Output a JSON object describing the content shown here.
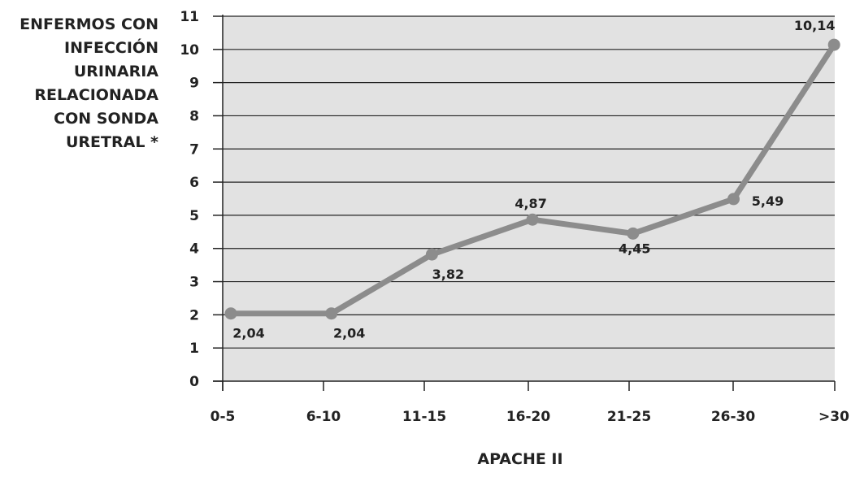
{
  "chart_data": {
    "type": "line",
    "title": "",
    "ylabel": "ENFERMOS CON\nINFECCIÓN\nURINARIA\nRELACIONADA\nCON SONDA\nURETRAL *",
    "xlabel": "APACHE II",
    "categories": [
      "0-5",
      "6-10",
      "11-15",
      "16-20",
      "21-25",
      "26-30",
      ">30"
    ],
    "series": [
      {
        "values": [
          2.04,
          2.04,
          3.82,
          4.87,
          4.45,
          5.49,
          10.14
        ]
      }
    ],
    "data_labels": [
      "2,04",
      "2,04",
      "3,82",
      "4,87",
      "4,45",
      "5,49",
      "10,14"
    ],
    "y_ticks": [
      "0",
      "1",
      "2",
      "3",
      "4",
      "5",
      "6",
      "7",
      "8",
      "9",
      "10",
      "11"
    ],
    "ylim": [
      0,
      11
    ],
    "grid": true,
    "legend": "none",
    "colors": {
      "plot_background": "#e2e2e2",
      "line": "#8c8c8c",
      "marker": "#8c8c8c",
      "grid": "#222222",
      "axis": "#222222"
    }
  }
}
